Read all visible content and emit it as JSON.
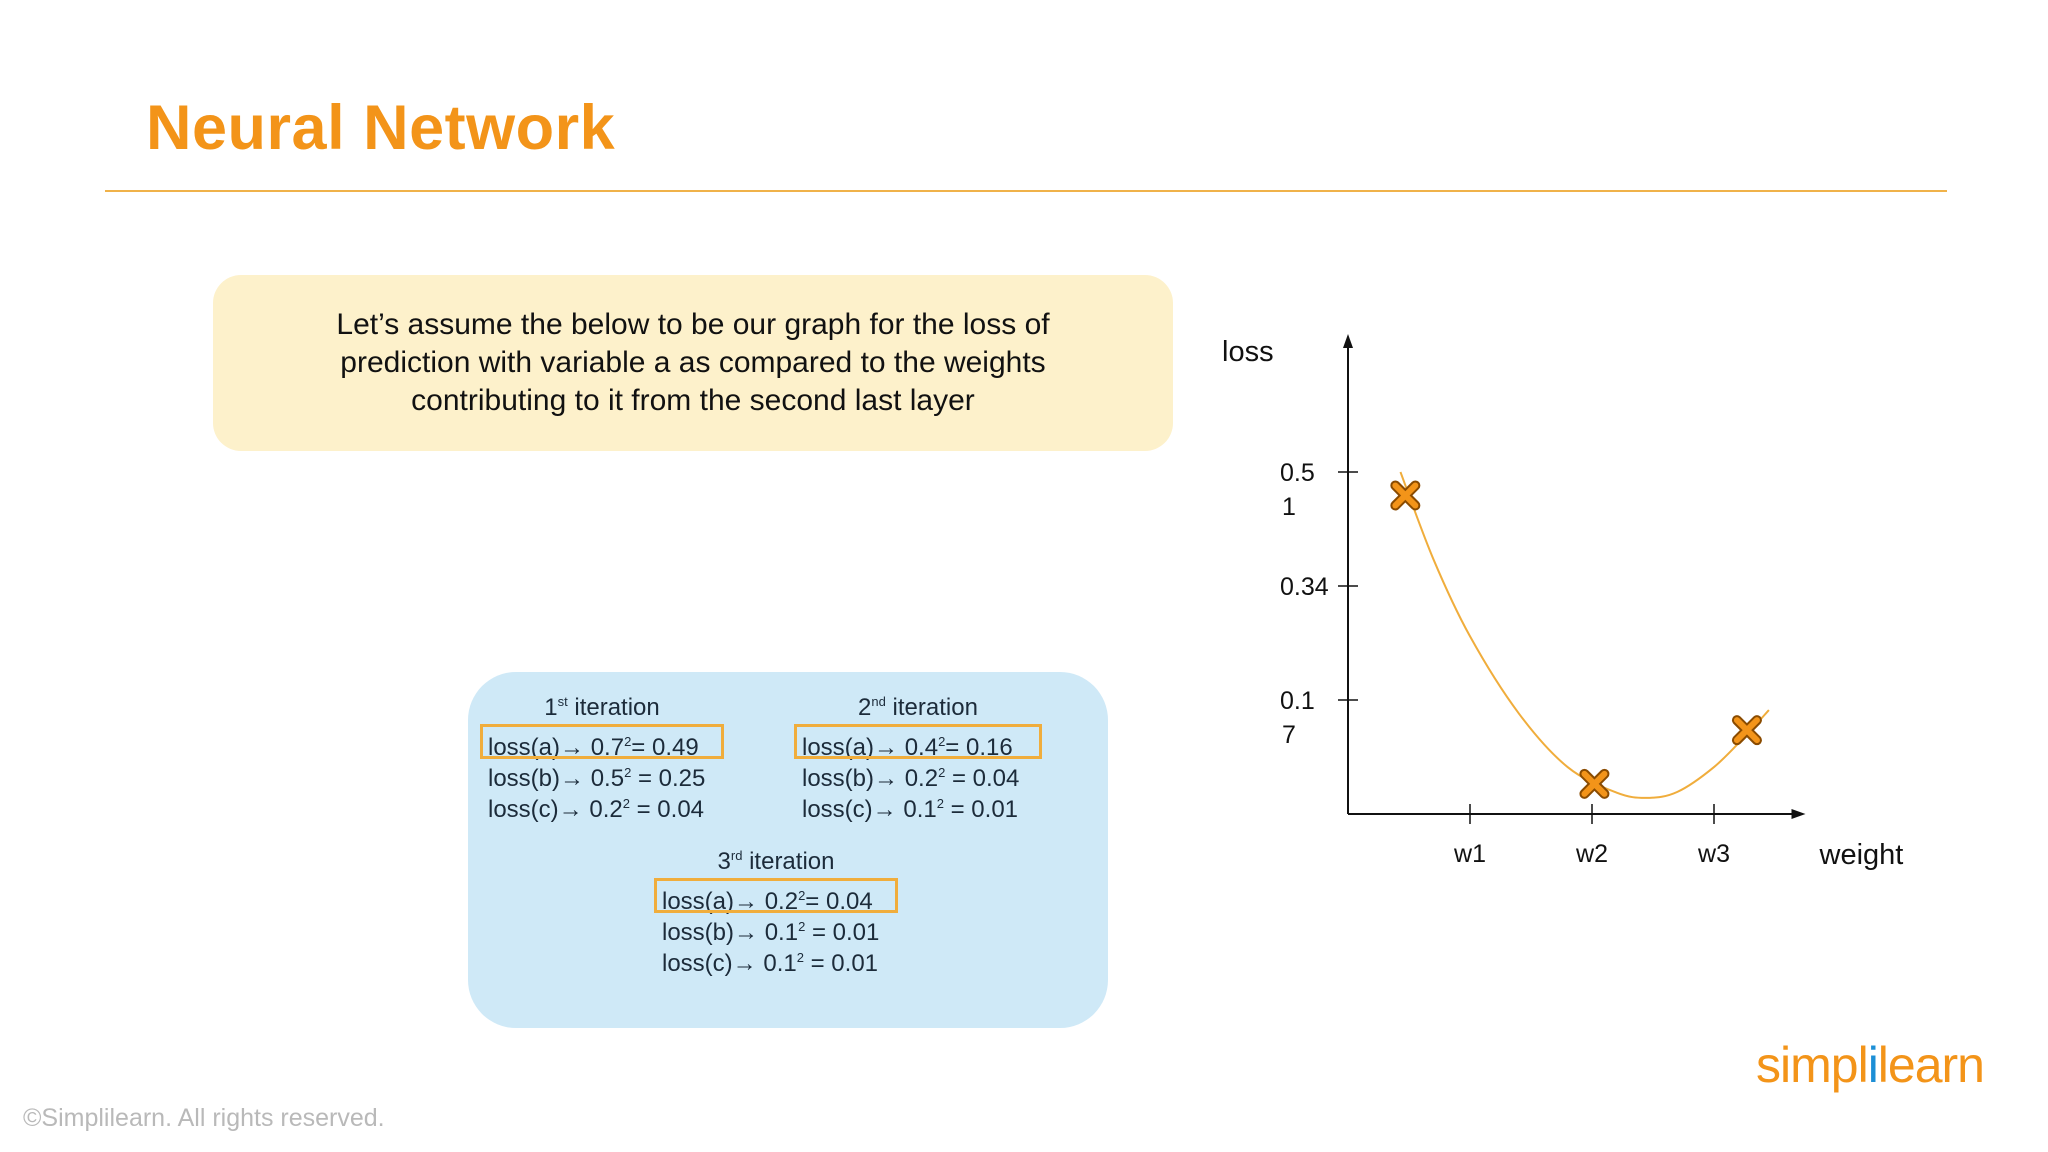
{
  "topbar": {
    "colors": [
      "#f5a623",
      "#f07a20",
      "#1aa35a",
      "#1f8fd8"
    ]
  },
  "header": {
    "title": "Neural Network"
  },
  "callout": {
    "lines": [
      "Let’s assume the below to be our graph for the loss of",
      "prediction with variable a as compared to the weights",
      "contributing to it from the second last layer"
    ]
  },
  "iterations": [
    {
      "ordinal": "1",
      "suffix": "st",
      "label": " iteration",
      "rows": [
        {
          "name": "loss(a)",
          "base": "0.7",
          "result": "= 0.49",
          "highlight": true
        },
        {
          "name": "loss(b)",
          "base": "0.5",
          "result": " = 0.25",
          "highlight": false
        },
        {
          "name": "loss(c)",
          "base": "0.2",
          "result": " = 0.04",
          "highlight": false
        }
      ]
    },
    {
      "ordinal": "2",
      "suffix": "nd",
      "label": " iteration",
      "rows": [
        {
          "name": "loss(a)",
          "base": "0.4",
          "result": "= 0.16",
          "highlight": true
        },
        {
          "name": "loss(b)",
          "base": "0.2",
          "result": " = 0.04",
          "highlight": false
        },
        {
          "name": "loss(c)",
          "base": "0.1",
          "result": " = 0.01",
          "highlight": false
        }
      ]
    },
    {
      "ordinal": "3",
      "suffix": "rd",
      "label": " iteration",
      "rows": [
        {
          "name": "loss(a)",
          "base": "0.2",
          "result": "= 0.04",
          "highlight": true
        },
        {
          "name": "loss(b)",
          "base": "0.1",
          "result": " = 0.01",
          "highlight": false
        },
        {
          "name": "loss(c)",
          "base": "0.1",
          "result": " = 0.01",
          "highlight": false
        }
      ]
    }
  ],
  "chart_data": {
    "type": "line",
    "xlabel": "weight",
    "ylabel": "loss",
    "x_ticks": [
      "w1",
      "w2",
      "w3"
    ],
    "y_ticks": [
      {
        "value": 0.51,
        "lines": [
          "0.5",
          "1"
        ]
      },
      {
        "value": 0.34,
        "lines": [
          "0.34"
        ]
      },
      {
        "value": 0.17,
        "lines": [
          "0.1",
          "7"
        ]
      }
    ],
    "ylim": [
      0,
      0.68
    ],
    "xlim": [
      0,
      3.75
    ],
    "points": [
      {
        "x": 0.47,
        "y": 0.475
      },
      {
        "x": 2.02,
        "y": 0.045
      },
      {
        "x": 3.27,
        "y": 0.125
      }
    ],
    "curve": [
      {
        "x": 0.43,
        "y": 0.51
      },
      {
        "x": 0.7,
        "y": 0.38
      },
      {
        "x": 1.0,
        "y": 0.265
      },
      {
        "x": 1.4,
        "y": 0.15
      },
      {
        "x": 1.8,
        "y": 0.07
      },
      {
        "x": 2.2,
        "y": 0.032
      },
      {
        "x": 2.45,
        "y": 0.024
      },
      {
        "x": 2.7,
        "y": 0.033
      },
      {
        "x": 3.0,
        "y": 0.07
      },
      {
        "x": 3.25,
        "y": 0.115
      },
      {
        "x": 3.45,
        "y": 0.155
      }
    ],
    "colors": {
      "curve": "#f0ad3c",
      "marker": "#f39419",
      "axis": "#111111"
    }
  },
  "footer": {
    "copyright": "©Simplilearn. All rights reserved.",
    "logo_part1": "simpl",
    "logo_part2": "i",
    "logo_part3": "learn"
  }
}
